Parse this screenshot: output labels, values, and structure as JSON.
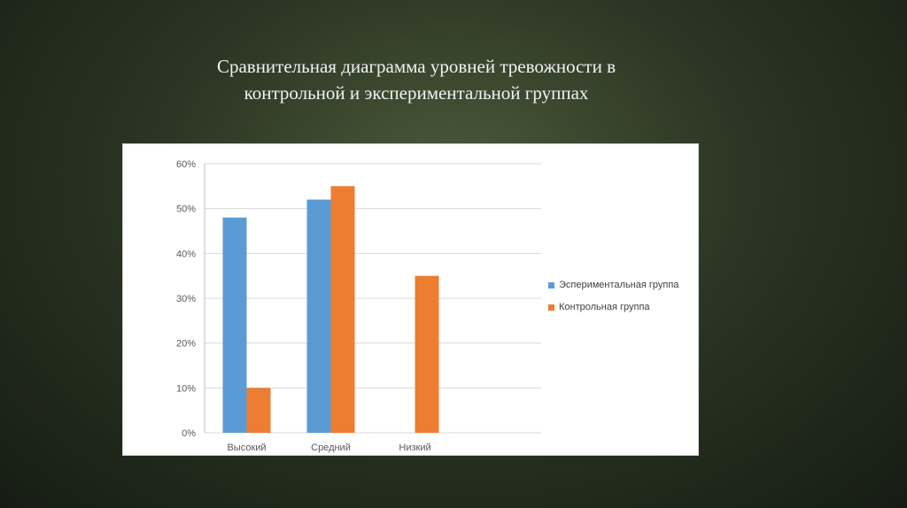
{
  "slide": {
    "title_line1": "Сравнительная диаграмма уровней тревожности в",
    "title_line2": "контрольной и экспериментальной группах"
  },
  "chart_data": {
    "type": "bar",
    "categories": [
      "Высокий",
      "Средний",
      "Низкий"
    ],
    "series": [
      {
        "name": "Эспериментальная группа",
        "color": "#5b9bd5",
        "values": [
          48,
          52,
          0
        ]
      },
      {
        "name": "Контрольная группа",
        "color": "#ed7d31",
        "values": [
          10,
          55,
          35
        ]
      }
    ],
    "ylim": [
      0,
      60
    ],
    "yticks": [
      "0%",
      "10%",
      "20%",
      "30%",
      "40%",
      "50%",
      "60%"
    ],
    "grid": true,
    "legend": "right"
  }
}
